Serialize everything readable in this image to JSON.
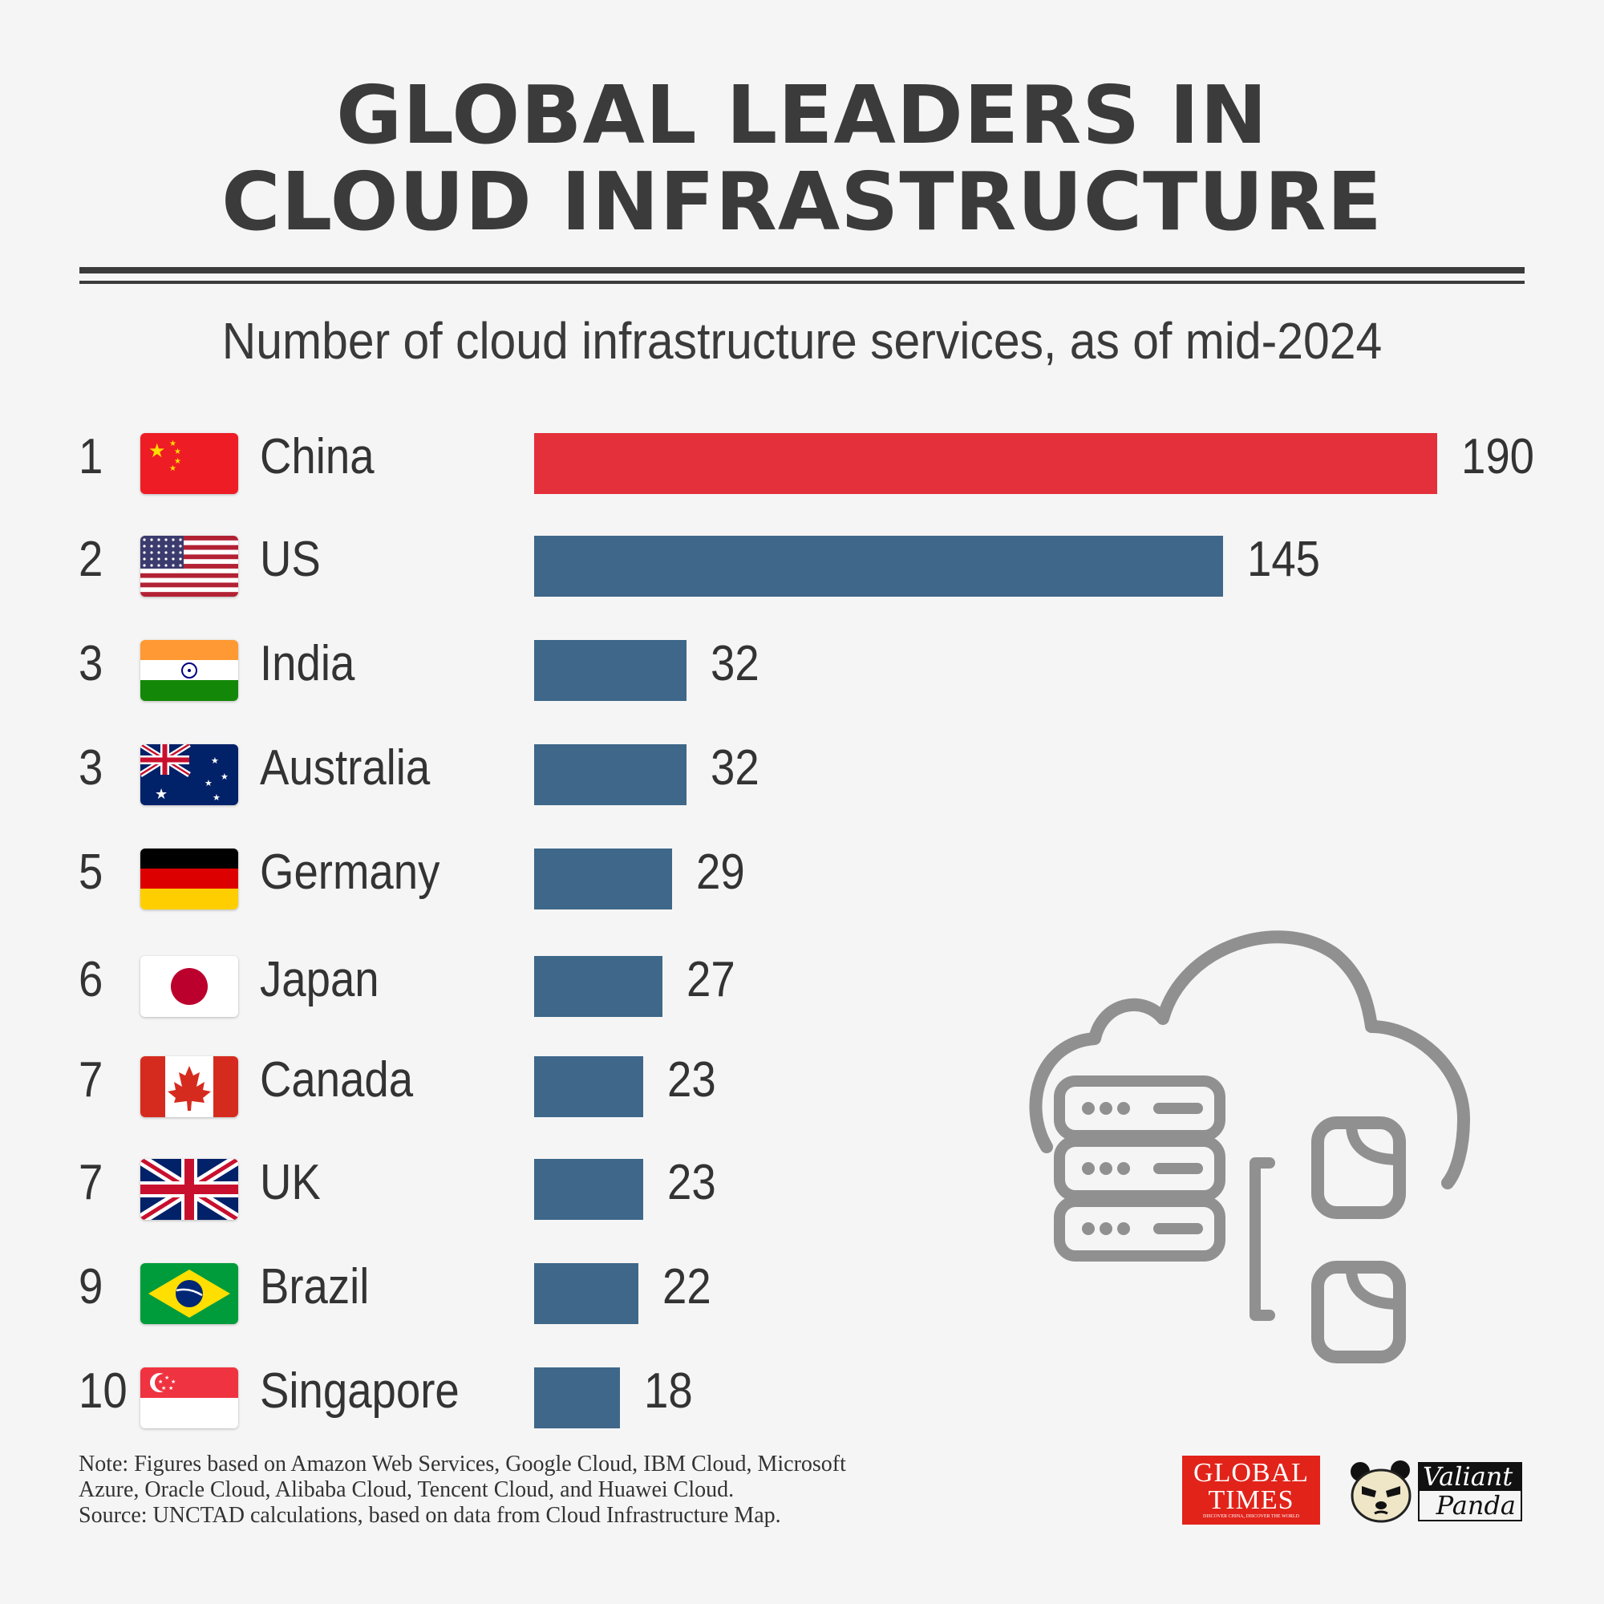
{
  "title": {
    "line1": "GLOBAL LEADERS IN",
    "line2": "CLOUD INFRASTRUCTURE"
  },
  "subtitle": "Number of cloud infrastructure services, as of mid-2024",
  "chart_data": {
    "type": "bar",
    "orientation": "horizontal",
    "title": "Number of cloud infrastructure services, as of mid-2024",
    "categories": [
      "China",
      "US",
      "India",
      "Australia",
      "Germany",
      "Japan",
      "Canada",
      "UK",
      "Brazil",
      "Singapore"
    ],
    "ranks": [
      "1",
      "2",
      "3",
      "3",
      "5",
      "6",
      "7",
      "7",
      "9",
      "10"
    ],
    "values": [
      190,
      145,
      32,
      32,
      29,
      27,
      23,
      23,
      22,
      18
    ],
    "xlim": [
      0,
      190
    ],
    "highlight_color": "#e3303a",
    "bar_color": "#3e6789"
  },
  "note": {
    "line1": "Note: Figures based on Amazon Web Services, Google Cloud, IBM Cloud, Microsoft",
    "line2": "Azure, Oracle Cloud, Alibaba Cloud, Tencent Cloud, and Huawei Cloud.",
    "line3": "Source: UNCTAD calculations, based on data from Cloud Infrastructure Map."
  },
  "logos": {
    "global_times": {
      "line1": "GLOBAL",
      "line2": "TIMES",
      "tagline": "DISCOVER CHINA, DISCOVER THE WORLD"
    },
    "valiant_panda": {
      "line1": "Valiant",
      "line2": "Panda"
    }
  },
  "icons": {
    "illustration": "cloud-server-files-icon"
  }
}
